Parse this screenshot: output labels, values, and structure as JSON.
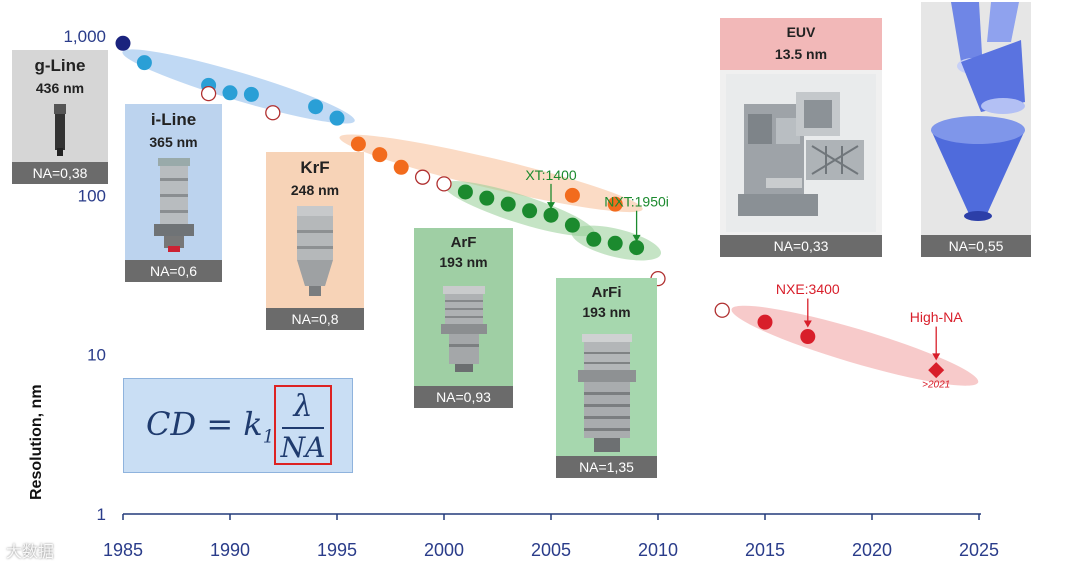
{
  "chart_data": {
    "type": "scatter",
    "title": "",
    "xlabel": "",
    "ylabel": "Resolution, nm",
    "y_scale": "log",
    "xlim": [
      1985,
      2025
    ],
    "ylim": [
      1,
      1000
    ],
    "x_ticks": [
      "1985",
      "1990",
      "1995",
      "2000",
      "2005",
      "2010",
      "2015",
      "2020",
      "2025"
    ],
    "y_ticks": [
      "1",
      "10",
      "100",
      "1,000"
    ],
    "series": [
      {
        "color": "#1a237e",
        "points": [
          [
            1985,
            900
          ]
        ]
      },
      {
        "color": "#2a9fd6",
        "points": [
          [
            1986,
            680
          ],
          [
            1989,
            490
          ],
          [
            1990,
            440
          ],
          [
            1991,
            430
          ],
          [
            1994,
            360
          ],
          [
            1995,
            305
          ]
        ]
      },
      {
        "color": "#f26b1d",
        "points": [
          [
            1996,
            210
          ],
          [
            1997,
            180
          ],
          [
            1998,
            150
          ],
          [
            2006,
            100
          ],
          [
            2008,
            88
          ]
        ]
      },
      {
        "color": "#1b8a2e",
        "points": [
          [
            2001,
            105
          ],
          [
            2002,
            96
          ],
          [
            2003,
            88
          ],
          [
            2004,
            80
          ],
          [
            2005,
            75
          ],
          [
            2006,
            65
          ],
          [
            2007,
            53
          ],
          [
            2008,
            50
          ],
          [
            2009,
            47
          ]
        ]
      },
      {
        "color": "#d81e2a",
        "marker": "circle",
        "points": [
          [
            2015,
            16
          ],
          [
            2017,
            13
          ]
        ]
      },
      {
        "color": "#d81e2a",
        "marker": "diamond",
        "points": [
          [
            2023,
            8
          ]
        ]
      },
      {
        "color": "#b03030",
        "marker": "hollow",
        "points": [
          [
            1989,
            435
          ],
          [
            1992,
            330
          ],
          [
            1999,
            130
          ],
          [
            2000,
            118
          ],
          [
            2010,
            30
          ],
          [
            2013,
            19
          ]
        ]
      }
    ],
    "annotations": [
      {
        "text": "XT:1400",
        "x": 2005,
        "y": 125,
        "color": "#1b8a2e"
      },
      {
        "text": "NXT:1950i",
        "x": 2009,
        "y": 85,
        "color": "#1b8a2e"
      },
      {
        "text": "NXE:3400",
        "x": 2017,
        "y": 24,
        "color": "#d81e2a"
      },
      {
        "text": "High-NA",
        "x": 2023,
        "y": 16,
        "color": "#d81e2a"
      },
      {
        "text": ">2021",
        "x": 2023,
        "y": 6.2,
        "color": "#d81e2a"
      }
    ],
    "grid": false,
    "legend": "none"
  },
  "cards": [
    {
      "name": "g-line",
      "title": "g-Line",
      "wavelength": "436 nm",
      "na": "NA=0,38",
      "bg": "#d6d6d6"
    },
    {
      "name": "i-line",
      "title": "i-Line",
      "wavelength": "365 nm",
      "na": "NA=0,6",
      "bg": "#bcd3ee"
    },
    {
      "name": "krf",
      "title": "KrF",
      "wavelength": "248 nm",
      "na": "NA=0,8",
      "bg": "#f7d3b7"
    },
    {
      "name": "arf",
      "title": "ArF",
      "wavelength": "193 nm",
      "na": "NA=0,93",
      "bg": "#9fcfa4"
    },
    {
      "name": "arfi",
      "title": "ArFi",
      "wavelength": "193 nm",
      "na": "NA=1,35",
      "bg": "#a6d7ae"
    },
    {
      "name": "euv",
      "title": "EUV",
      "wavelength": "13.5 nm",
      "na": "NA=0,33",
      "bg": "#f2b8b8"
    },
    {
      "name": "high-na",
      "title": "",
      "wavelength": "",
      "na": "NA=0,55",
      "bg": "#e6e6e6"
    }
  ],
  "formula": {
    "lhs": "CD = k",
    "sub": "1",
    "numerator": "λ",
    "denominator": "NA"
  },
  "watermark": "大数据"
}
